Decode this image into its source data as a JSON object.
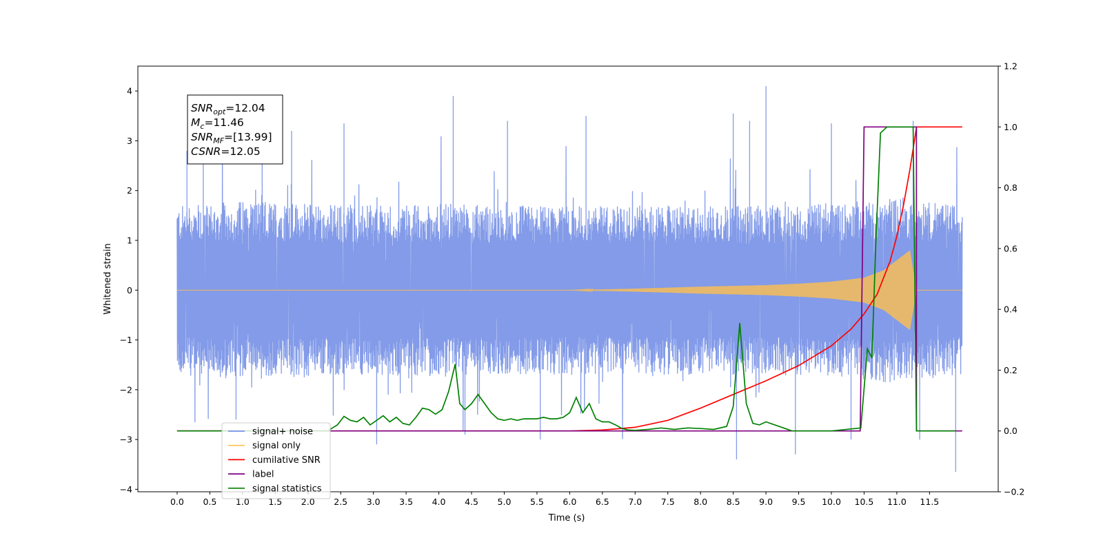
{
  "chart_data": {
    "type": "line",
    "xlabel": "Time (s)",
    "ylabel_left": "Whitened strain",
    "ylabel_right": "",
    "xlim": [
      -0.6,
      12.55
    ],
    "ylim_left": [
      -4.05,
      4.5
    ],
    "ylim_right": [
      -0.2,
      1.2
    ],
    "x_ticks": [
      "0.0",
      "0.5",
      "1.0",
      "1.5",
      "2.0",
      "2.5",
      "3.0",
      "3.5",
      "4.0",
      "4.5",
      "5.0",
      "5.5",
      "6.0",
      "6.5",
      "7.0",
      "7.5",
      "8.0",
      "8.5",
      "9.0",
      "9.5",
      "10.0",
      "10.5",
      "11.0",
      "11.5"
    ],
    "y_ticks_left": [
      "−4",
      "−3",
      "−2",
      "−1",
      "0",
      "1",
      "2",
      "3",
      "4"
    ],
    "y_ticks_right": [
      "−0.2",
      "0.0",
      "0.2",
      "0.4",
      "0.6",
      "0.8",
      "1.0",
      "1.2"
    ],
    "grid": false,
    "legend_position": "lower-left",
    "annotation": {
      "lines": [
        {
          "sym": "SNR",
          "sub": "opt",
          "rest": "=12.04"
        },
        {
          "sym": "M",
          "sub": "c",
          "rest": "=11.46"
        },
        {
          "sym": "SNR",
          "sub": "MF",
          "rest": "=[13.99]"
        },
        {
          "sym": "CSNR",
          "sub": "",
          "rest": "=12.05"
        }
      ]
    },
    "series": [
      {
        "name": "signal+ noise",
        "color": "#7893e6",
        "axis": "left",
        "description_kind": "noisy band",
        "band_envelope_t": [
          0.0,
          1.0,
          2.0,
          3.0,
          4.0,
          5.0,
          6.0,
          7.0,
          8.0,
          9.0,
          10.0,
          10.5,
          11.0,
          11.3,
          12.0
        ],
        "band_upper": [
          1.7,
          1.8,
          1.75,
          1.7,
          1.75,
          1.7,
          1.7,
          1.7,
          1.7,
          1.7,
          1.75,
          1.8,
          1.9,
          1.8,
          1.7
        ],
        "band_lower": [
          -1.7,
          -1.8,
          -1.75,
          -1.7,
          -1.75,
          -1.7,
          -1.7,
          -1.7,
          -1.7,
          -1.7,
          -1.75,
          -1.8,
          -1.9,
          -1.8,
          -1.7
        ],
        "spikes": [
          {
            "t": 0.15,
            "v": 2.8
          },
          {
            "t": 0.4,
            "v": 3.0
          },
          {
            "t": 0.9,
            "v": -2.6
          },
          {
            "t": 1.3,
            "v": 3.0
          },
          {
            "t": 1.75,
            "v": 3.2
          },
          {
            "t": 2.55,
            "v": 3.35
          },
          {
            "t": 3.05,
            "v": -3.1
          },
          {
            "t": 4.22,
            "v": 3.9
          },
          {
            "t": 4.4,
            "v": -2.9
          },
          {
            "t": 5.05,
            "v": 3.4
          },
          {
            "t": 5.55,
            "v": -3.0
          },
          {
            "t": 6.25,
            "v": 3.5
          },
          {
            "t": 8.5,
            "v": 3.55
          },
          {
            "t": 8.55,
            "v": -3.4
          },
          {
            "t": 8.75,
            "v": 3.4
          },
          {
            "t": 9.0,
            "v": 4.1
          },
          {
            "t": 9.45,
            "v": -3.3
          },
          {
            "t": 10.0,
            "v": 3.35
          },
          {
            "t": 10.3,
            "v": -3.0
          },
          {
            "t": 11.25,
            "v": 3.4
          },
          {
            "t": 11.35,
            "v": -3.0
          },
          {
            "t": 11.9,
            "v": -3.65
          }
        ]
      },
      {
        "name": "signal only",
        "color": "#ffbf4d",
        "axis": "left",
        "description_kind": "chirp",
        "chirp_envelope_t": [
          0.0,
          6.0,
          7.0,
          8.0,
          9.0,
          9.5,
          10.0,
          10.5,
          10.8,
          11.0,
          11.2,
          11.3
        ],
        "chirp_envelope_amp": [
          0.0,
          0.0,
          0.03,
          0.07,
          0.1,
          0.13,
          0.17,
          0.25,
          0.4,
          0.6,
          0.8,
          0.0
        ],
        "end_t": 12.0
      },
      {
        "name": "cumilative SNR",
        "color": "#ff0000",
        "axis": "right",
        "x": [
          0.0,
          6.0,
          6.5,
          7.0,
          7.5,
          8.0,
          8.5,
          9.0,
          9.5,
          10.0,
          10.3,
          10.5,
          10.7,
          10.9,
          11.0,
          11.1,
          11.2,
          11.28,
          11.3,
          12.0
        ],
        "y": [
          0.0,
          0.0,
          0.003,
          0.012,
          0.035,
          0.075,
          0.12,
          0.165,
          0.215,
          0.28,
          0.335,
          0.385,
          0.45,
          0.56,
          0.64,
          0.74,
          0.86,
          0.97,
          1.0,
          1.0
        ]
      },
      {
        "name": "label",
        "color": "#800080",
        "axis": "right",
        "x": [
          0.0,
          10.44,
          10.5,
          11.3,
          11.3,
          12.0
        ],
        "y": [
          0.0,
          0.0,
          1.0,
          1.0,
          0.0,
          0.0
        ]
      },
      {
        "name": "signal statistics",
        "color": "#008000",
        "axis": "right",
        "x": [
          0.0,
          2.3,
          2.45,
          2.55,
          2.65,
          2.75,
          2.85,
          2.95,
          3.05,
          3.15,
          3.25,
          3.35,
          3.45,
          3.55,
          3.65,
          3.75,
          3.85,
          3.95,
          4.05,
          4.15,
          4.25,
          4.32,
          4.4,
          4.5,
          4.6,
          4.7,
          4.8,
          4.9,
          5.0,
          5.1,
          5.2,
          5.3,
          5.4,
          5.5,
          5.6,
          5.7,
          5.8,
          5.9,
          6.0,
          6.1,
          6.2,
          6.3,
          6.4,
          6.5,
          6.6,
          6.7,
          6.8,
          6.9,
          7.0,
          7.2,
          7.4,
          7.6,
          7.8,
          8.0,
          8.2,
          8.4,
          8.5,
          8.6,
          8.7,
          8.8,
          8.9,
          9.0,
          9.2,
          9.4,
          9.6,
          10.0,
          10.45,
          10.55,
          10.62,
          10.68,
          10.75,
          10.85,
          11.0,
          11.15,
          11.25,
          11.3,
          11.9
        ],
        "y": [
          0.0,
          0.0,
          0.02,
          0.048,
          0.035,
          0.03,
          0.045,
          0.02,
          0.035,
          0.05,
          0.03,
          0.045,
          0.025,
          0.02,
          0.045,
          0.075,
          0.07,
          0.055,
          0.07,
          0.13,
          0.22,
          0.09,
          0.07,
          0.09,
          0.12,
          0.09,
          0.06,
          0.04,
          0.035,
          0.04,
          0.035,
          0.04,
          0.04,
          0.04,
          0.045,
          0.04,
          0.04,
          0.045,
          0.06,
          0.11,
          0.06,
          0.09,
          0.04,
          0.03,
          0.03,
          0.02,
          0.008,
          0.003,
          0.002,
          0.005,
          0.01,
          0.005,
          0.01,
          0.008,
          0.005,
          0.015,
          0.08,
          0.355,
          0.09,
          0.025,
          0.02,
          0.03,
          0.015,
          0.0,
          0.0,
          0.0,
          0.01,
          0.27,
          0.24,
          0.62,
          0.98,
          1.0,
          1.0,
          1.0,
          1.0,
          0.0,
          0.0
        ]
      }
    ]
  }
}
